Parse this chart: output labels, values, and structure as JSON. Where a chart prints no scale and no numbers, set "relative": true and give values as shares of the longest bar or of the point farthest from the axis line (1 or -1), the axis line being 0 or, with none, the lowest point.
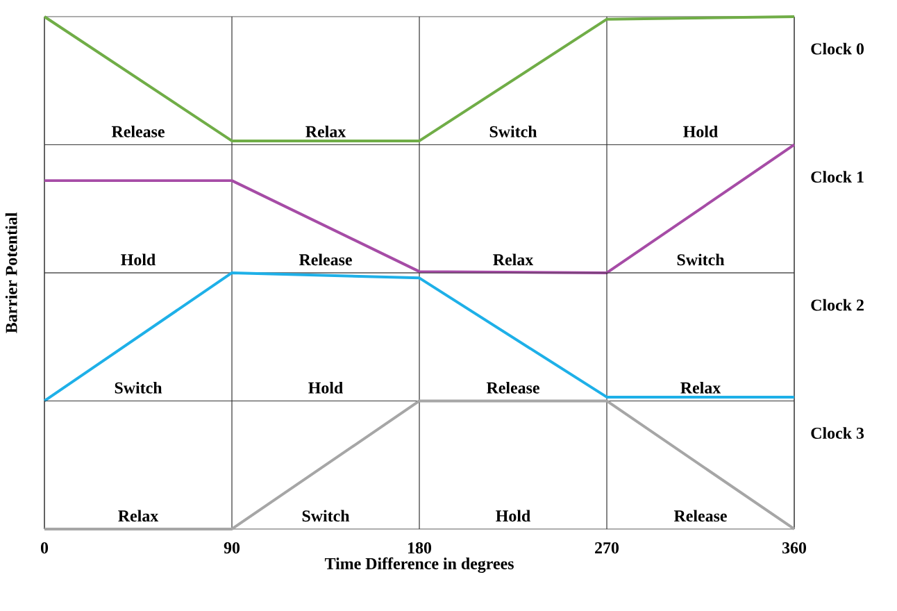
{
  "chart_data": [
    {
      "type": "line",
      "x": [
        0,
        90,
        180,
        270,
        360
      ],
      "relative": true,
      "xlim": [
        0,
        360
      ],
      "xticks": [
        0,
        90,
        180,
        270,
        360
      ],
      "grid": "x",
      "tick_labels": false,
      "series": [
        {
          "color": "#70ad47",
          "values": [
            1,
            0.03,
            0.03,
            0.98,
            1
          ]
        }
      ],
      "annotations": [
        "Release",
        "Relax",
        "Switch",
        "Hold",
        "Clock 0"
      ]
    },
    {
      "type": "line",
      "ylabel": "Barrier Potential",
      "x": [
        0,
        90,
        180,
        270,
        360
      ],
      "relative": true,
      "xlim": [
        0,
        360
      ],
      "xticks": [
        0,
        90,
        180,
        270,
        360
      ],
      "grid": "x",
      "tick_labels": false,
      "series": [
        {
          "color": "#a64ca6",
          "values": [
            0.72,
            0.72,
            0.01,
            0,
            1
          ]
        }
      ],
      "annotations": [
        "Hold",
        "Release",
        "Relax",
        "Switch",
        "Clock 1"
      ]
    },
    {
      "type": "line",
      "x": [
        0,
        90,
        180,
        270,
        360
      ],
      "relative": true,
      "xlim": [
        0,
        360
      ],
      "xticks": [
        0,
        90,
        180,
        270,
        360
      ],
      "grid": "x",
      "tick_labels": false,
      "series": [
        {
          "color": "#1eb0e8",
          "values": [
            0,
            1,
            0.96,
            0.03,
            0.03
          ]
        }
      ],
      "annotations": [
        "Switch",
        "Hold",
        "Release",
        "Relax",
        "Clock 2"
      ]
    },
    {
      "type": "line",
      "xlabel": "Time Difference in degrees",
      "x": [
        0,
        90,
        180,
        270,
        360
      ],
      "relative": true,
      "xlim": [
        0,
        360
      ],
      "xticks": [
        0,
        90,
        180,
        270,
        360
      ],
      "grid": "x",
      "tick_labels": "x",
      "series": [
        {
          "color": "#a6a6a6",
          "values": [
            0,
            0,
            1,
            1,
            0
          ]
        }
      ],
      "annotations": [
        "Relax",
        "Switch",
        "Hold",
        "Release",
        "Clock 3"
      ]
    }
  ]
}
